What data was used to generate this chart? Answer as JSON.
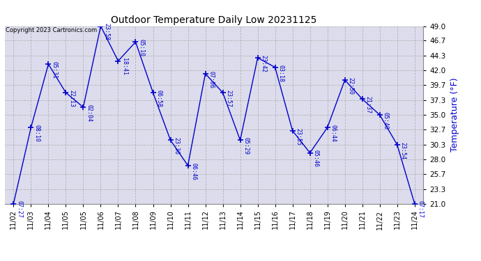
{
  "title": "Outdoor Temperature Daily Low 20231125",
  "ylabel": "Temperature (°F)",
  "copyright": "Copyright 2023 Cartronics.com",
  "line_color": "#0000cc",
  "background_color": "#ffffff",
  "plot_bg_color": "#dcdcec",
  "grid_color": "#aaaaaa",
  "blue": "#0000cc",
  "black": "#000000",
  "ylim": [
    21.0,
    49.0
  ],
  "yticks": [
    21.0,
    23.3,
    25.7,
    28.0,
    30.3,
    32.7,
    35.0,
    37.3,
    39.7,
    42.0,
    44.3,
    46.7,
    49.0
  ],
  "x_indices": [
    0,
    1,
    2,
    3,
    4,
    5,
    6,
    7,
    8,
    9,
    10,
    11,
    12,
    13,
    14,
    15,
    16,
    17,
    18,
    19,
    20,
    21,
    22,
    23
  ],
  "temperatures": [
    21.0,
    33.0,
    43.0,
    38.5,
    36.2,
    49.0,
    43.5,
    46.5,
    38.5,
    31.0,
    27.0,
    41.5,
    38.5,
    31.0,
    44.0,
    42.5,
    32.5,
    29.0,
    33.0,
    40.5,
    37.5,
    35.0,
    30.3,
    21.0
  ],
  "labels": [
    "07:27",
    "08:10",
    "05:31",
    "22:13",
    "02:04",
    "23:58",
    "18:41",
    "05:10",
    "06:58",
    "23:36",
    "06:46",
    "07:06",
    "23:57",
    "05:29",
    "23:42",
    "03:18",
    "23:55",
    "05:46",
    "06:44",
    "22:50",
    "21:37",
    "05:40",
    "23:54",
    "07:17"
  ],
  "xtick_labels": [
    "11/02",
    "11/03",
    "11/04",
    "11/05",
    "11/05",
    "11/06",
    "11/07",
    "11/08",
    "11/09",
    "11/10",
    "11/11",
    "11/12",
    "11/13",
    "11/14",
    "11/15",
    "11/16",
    "11/17",
    "11/18",
    "11/19",
    "11/20",
    "11/21",
    "11/22",
    "11/23",
    "11/24"
  ]
}
